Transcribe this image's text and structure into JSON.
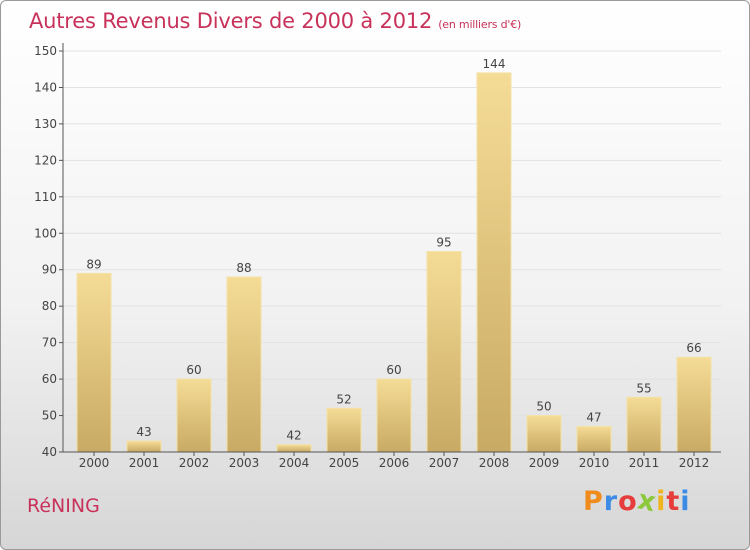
{
  "chart_data": {
    "type": "bar",
    "title": "Autres Revenus Divers de 2000 à 2012",
    "subtitle": "(en milliers d'€)",
    "categories": [
      "2000",
      "2001",
      "2002",
      "2003",
      "2004",
      "2005",
      "2006",
      "2007",
      "2008",
      "2009",
      "2010",
      "2011",
      "2012"
    ],
    "values": [
      89,
      43,
      60,
      88,
      42,
      52,
      60,
      95,
      144,
      50,
      47,
      55,
      66
    ],
    "ylim": [
      40,
      150
    ],
    "yticks": [
      40,
      50,
      60,
      70,
      80,
      90,
      100,
      110,
      120,
      130,
      140,
      150
    ],
    "grid": true,
    "legend": "none",
    "bar_color_top": "#f5dc96",
    "bar_color_bottom": "#c8aa64"
  },
  "footer": {
    "location": "RéNING",
    "logo_letters": [
      "P",
      "r",
      "o",
      "x",
      "i",
      "t",
      "i"
    ],
    "logo_colors": [
      "#f08c1e",
      "#3c8ce6",
      "#e63c3c",
      "#8cc83c",
      "#f0b41e",
      "#e63c3c",
      "#3c8ce6"
    ]
  }
}
